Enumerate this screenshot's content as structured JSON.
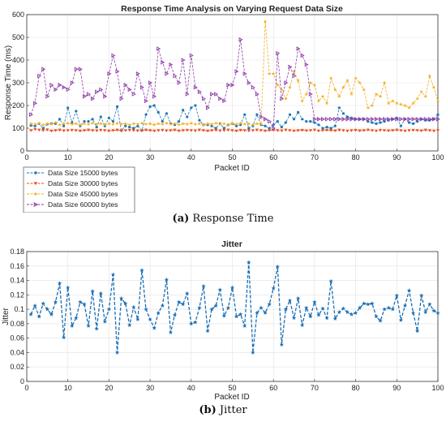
{
  "captions": {
    "a_tag": "(a)",
    "a_text": "Response Time",
    "b_tag": "(b)",
    "b_text": "Jitter"
  },
  "colors": {
    "s15000": "#1f77b4",
    "s30000": "#e8501c",
    "s45000": "#f2b01e",
    "s60000": "#8e3ea8",
    "jitter": "#1a6fb5"
  },
  "chart_data": [
    {
      "type": "line",
      "title": "Response Time Analysis on Varying Request Data Size",
      "xlabel": "Packet ID",
      "ylabel": "Response Time (ms)",
      "xlim": [
        0,
        100
      ],
      "ylim": [
        0,
        600
      ],
      "xticks": [
        "0",
        "10",
        "20",
        "30",
        "40",
        "50",
        "60",
        "70",
        "80",
        "90",
        "100"
      ],
      "yticks": [
        "0",
        "100",
        "200",
        "300",
        "400",
        "500",
        "600"
      ],
      "grid": true,
      "legend": "bottom-left",
      "x": [
        1,
        2,
        3,
        4,
        5,
        6,
        7,
        8,
        9,
        10,
        11,
        12,
        13,
        14,
        15,
        16,
        17,
        18,
        19,
        20,
        21,
        22,
        23,
        24,
        25,
        26,
        27,
        28,
        29,
        30,
        31,
        32,
        33,
        34,
        35,
        36,
        37,
        38,
        39,
        40,
        41,
        42,
        43,
        44,
        45,
        46,
        47,
        48,
        49,
        50,
        51,
        52,
        53,
        54,
        55,
        56,
        57,
        58,
        59,
        60,
        61,
        62,
        63,
        64,
        65,
        66,
        67,
        68,
        69,
        70,
        71,
        72,
        73,
        74,
        75,
        76,
        77,
        78,
        79,
        80,
        81,
        82,
        83,
        84,
        85,
        86,
        87,
        88,
        89,
        90,
        91,
        92,
        93,
        94,
        95,
        96,
        97,
        98,
        99,
        100
      ],
      "series": [
        {
          "name": "Data Size 15000 bytes",
          "marker": "circle",
          "values": [
            112,
            110,
            120,
            100,
            118,
            120,
            120,
            140,
            110,
            190,
            125,
            175,
            110,
            130,
            130,
            140,
            105,
            150,
            110,
            145,
            130,
            195,
            90,
            110,
            105,
            100,
            110,
            90,
            160,
            195,
            200,
            170,
            130,
            165,
            120,
            115,
            130,
            180,
            150,
            190,
            200,
            135,
            115,
            115,
            110,
            100,
            120,
            100,
            115,
            120,
            110,
            115,
            160,
            100,
            110,
            160,
            115,
            110,
            100,
            115,
            130,
            105,
            125,
            160,
            140,
            170,
            140,
            130,
            130,
            125,
            115,
            100,
            105,
            100,
            110,
            190,
            165,
            150,
            145,
            140,
            140,
            140,
            130,
            125,
            120,
            125,
            130,
            135,
            140,
            145,
            110,
            140,
            125,
            120,
            130,
            140,
            135,
            135,
            140,
            160
          ]
        },
        {
          "name": "Data Size 30000 bytes",
          "marker": "triangle-down",
          "values": [
            90,
            95,
            92,
            90,
            93,
            88,
            90,
            92,
            89,
            90,
            91,
            90,
            88,
            90,
            92,
            90,
            89,
            91,
            90,
            88,
            90,
            92,
            89,
            90,
            91,
            90,
            89,
            90,
            92,
            90,
            88,
            90,
            91,
            89,
            90,
            92,
            88,
            90,
            91,
            90,
            89,
            92,
            90,
            88,
            90,
            91,
            89,
            90,
            92,
            90,
            88,
            91,
            90,
            89,
            90,
            92,
            90,
            88,
            90,
            91,
            90,
            89,
            92,
            90,
            88,
            90,
            91,
            89,
            90,
            92,
            88,
            90,
            91,
            90,
            89,
            92,
            90,
            88,
            90,
            91,
            89,
            90,
            92,
            90,
            88,
            91,
            90,
            89,
            90,
            92,
            90,
            88,
            90,
            91,
            90,
            89,
            92,
            90,
            88,
            90
          ]
        },
        {
          "name": "Data Size 45000 bytes",
          "marker": "star",
          "values": [
            120,
            118,
            122,
            115,
            120,
            118,
            125,
            115,
            120,
            122,
            118,
            120,
            115,
            120,
            118,
            122,
            118,
            120,
            115,
            120,
            118,
            122,
            118,
            120,
            115,
            120,
            118,
            122,
            118,
            120,
            115,
            120,
            118,
            122,
            118,
            120,
            115,
            120,
            118,
            122,
            118,
            120,
            115,
            120,
            118,
            122,
            118,
            120,
            115,
            120,
            118,
            122,
            118,
            120,
            115,
            120,
            118,
            570,
            340,
            340,
            290,
            270,
            230,
            280,
            350,
            310,
            220,
            250,
            300,
            290,
            220,
            240,
            210,
            320,
            270,
            240,
            280,
            310,
            250,
            320,
            300,
            270,
            190,
            200,
            250,
            240,
            300,
            210,
            220,
            210,
            205,
            200,
            190,
            210,
            230,
            260,
            240,
            330,
            280,
            220
          ]
        },
        {
          "name": "Data Size 60000 bytes",
          "marker": "triangle-right",
          "values": [
            160,
            210,
            330,
            360,
            240,
            290,
            270,
            290,
            280,
            270,
            300,
            360,
            360,
            240,
            250,
            230,
            260,
            270,
            240,
            340,
            420,
            350,
            230,
            290,
            270,
            250,
            340,
            280,
            220,
            300,
            240,
            450,
            390,
            340,
            380,
            330,
            300,
            400,
            250,
            420,
            280,
            260,
            230,
            190,
            250,
            250,
            230,
            220,
            290,
            290,
            350,
            490,
            340,
            300,
            280,
            250,
            150,
            140,
            130,
            100,
            430,
            230,
            300,
            370,
            330,
            450,
            420,
            380,
            250,
            140,
            140,
            140,
            140,
            140,
            140,
            140,
            140,
            140,
            140,
            140,
            140,
            140,
            140,
            140,
            140,
            140,
            140,
            140,
            140,
            140,
            140,
            140,
            140,
            140,
            140,
            140,
            140,
            140,
            140,
            140
          ]
        }
      ]
    },
    {
      "type": "line",
      "title": "Jitter",
      "xlabel": "Packet ID",
      "ylabel": "Jitter",
      "xlim": [
        0,
        100
      ],
      "ylim": [
        0,
        0.18
      ],
      "xticks": [
        "0",
        "10",
        "20",
        "30",
        "40",
        "50",
        "60",
        "70",
        "80",
        "90",
        "100"
      ],
      "yticks": [
        "0",
        "0.02",
        "0.04",
        "0.06",
        "0.08",
        "0.1",
        "0.12",
        "0.14",
        "0.16",
        "0.18"
      ],
      "grid": true,
      "x": [
        1,
        2,
        3,
        4,
        5,
        6,
        7,
        8,
        9,
        10,
        11,
        12,
        13,
        14,
        15,
        16,
        17,
        18,
        19,
        20,
        21,
        22,
        23,
        24,
        25,
        26,
        27,
        28,
        29,
        30,
        31,
        32,
        33,
        34,
        35,
        36,
        37,
        38,
        39,
        40,
        41,
        42,
        43,
        44,
        45,
        46,
        47,
        48,
        49,
        50,
        51,
        52,
        53,
        54,
        55,
        56,
        57,
        58,
        59,
        60,
        61,
        62,
        63,
        64,
        65,
        66,
        67,
        68,
        69,
        70,
        71,
        72,
        73,
        74,
        75,
        76,
        77,
        78,
        79,
        80,
        81,
        82,
        83,
        84,
        85,
        86,
        87,
        88,
        89,
        90,
        91,
        92,
        93,
        94,
        95,
        96,
        97,
        98,
        99,
        100
      ],
      "series": [
        {
          "name": "Jitter",
          "marker": "star",
          "values": [
            0.093,
            0.105,
            0.09,
            0.108,
            0.1,
            0.093,
            0.11,
            0.136,
            0.061,
            0.13,
            0.077,
            0.088,
            0.11,
            0.107,
            0.077,
            0.125,
            0.073,
            0.122,
            0.083,
            0.1,
            0.148,
            0.04,
            0.115,
            0.108,
            0.078,
            0.103,
            0.086,
            0.154,
            0.1,
            0.086,
            0.074,
            0.095,
            0.105,
            0.141,
            0.068,
            0.092,
            0.11,
            0.107,
            0.122,
            0.08,
            0.082,
            0.102,
            0.132,
            0.07,
            0.1,
            0.105,
            0.127,
            0.091,
            0.102,
            0.13,
            0.09,
            0.093,
            0.077,
            0.165,
            0.04,
            0.095,
            0.102,
            0.095,
            0.107,
            0.129,
            0.159,
            0.051,
            0.1,
            0.112,
            0.088,
            0.115,
            0.078,
            0.102,
            0.09,
            0.11,
            0.092,
            0.101,
            0.088,
            0.139,
            0.087,
            0.096,
            0.101,
            0.096,
            0.093,
            0.095,
            0.102,
            0.108,
            0.107,
            0.108,
            0.09,
            0.084,
            0.1,
            0.102,
            0.1,
            0.119,
            0.085,
            0.105,
            0.126,
            0.095,
            0.07,
            0.119,
            0.096,
            0.107,
            0.098,
            0.095
          ]
        }
      ]
    }
  ]
}
